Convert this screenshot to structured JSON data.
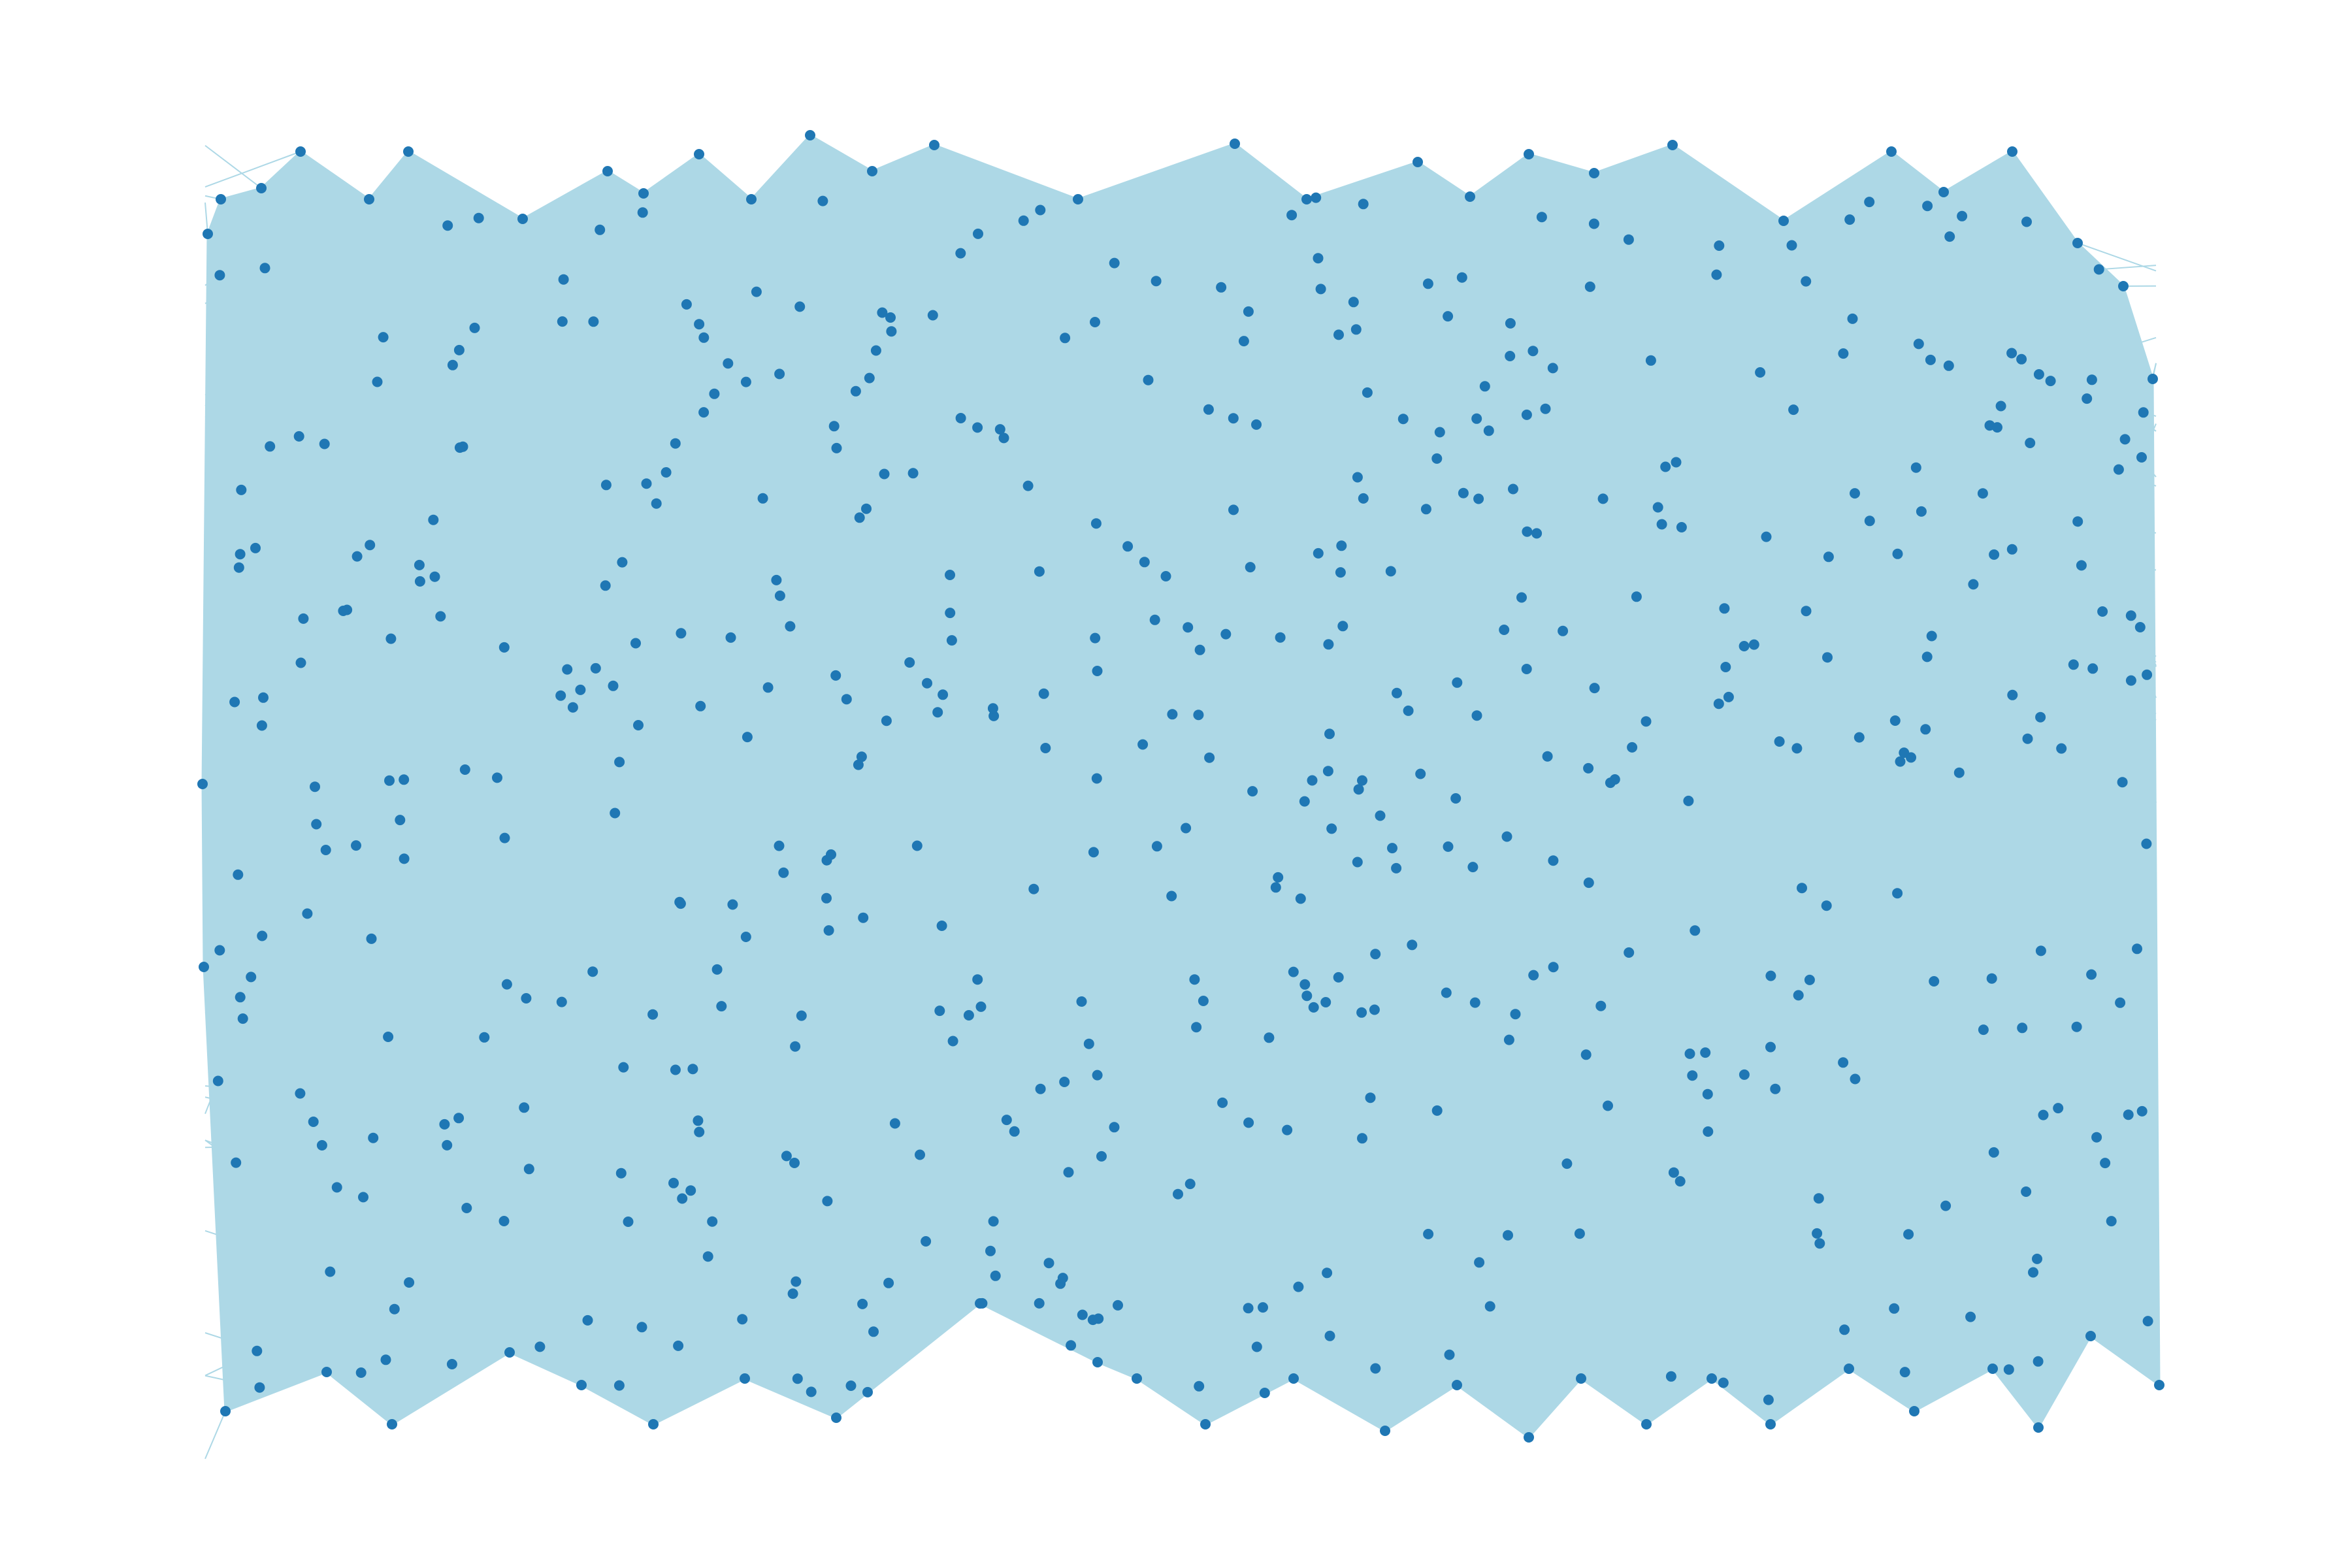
{
  "diagram": {
    "type": "network-graph",
    "title": "",
    "node_count_visible": 600,
    "edge_style": "dense, overlapping straight lines",
    "colors": {
      "background": "#ffffff",
      "edge": "#add8e6",
      "node": "#1f77b4"
    }
  }
}
